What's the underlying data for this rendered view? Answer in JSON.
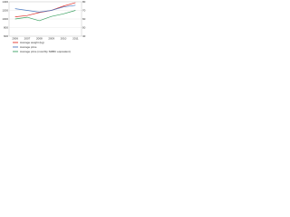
{
  "chart_data": {
    "type": "line",
    "categories": [
      "2006",
      "2007",
      "2008",
      "2009",
      "2010",
      "2011"
    ],
    "series": [
      {
        "name": "Average weight (kg)",
        "color": "#e0302a",
        "values": [
          1050,
          1080,
          1150,
          1200,
          1300,
          1380
        ]
      },
      {
        "name": "Average price",
        "color": "#4a78c0",
        "axis": "y2",
        "values": [
          72,
          70,
          68,
          70,
          74,
          76
        ]
      },
      {
        "name": "Average price (monthly SMBC equivalent)",
        "color": "#3aa060",
        "axis": "y2",
        "values": [
          60,
          62,
          58,
          63,
          66,
          70
        ]
      }
    ],
    "ylim": [
      600,
      1400
    ],
    "yticks": [
      600,
      800,
      1000,
      1200,
      1400
    ],
    "y2lim": [
      40,
      80
    ],
    "y2ticks": [
      40,
      50,
      60,
      70,
      80
    ],
    "grid": true
  }
}
